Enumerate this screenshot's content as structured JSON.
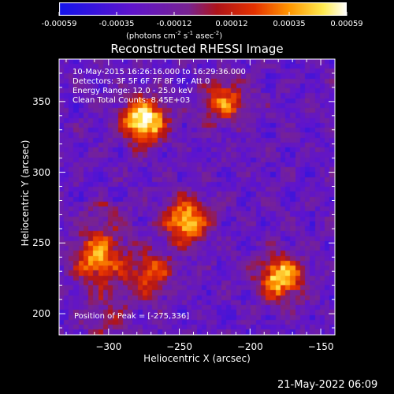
{
  "chart_data": {
    "type": "heatmap",
    "title": "Reconstructed RHESSI Image",
    "xlabel": "Heliocentric X (arcsec)",
    "ylabel": "Heliocentric Y (arcsec)",
    "xlim": [
      -335,
      -140
    ],
    "ylim": [
      185,
      380
    ],
    "x_ticks": [
      -300,
      -250,
      -200,
      -150
    ],
    "y_ticks": [
      200,
      250,
      300,
      350
    ],
    "colorbar": {
      "min": -0.00059,
      "max": 0.00059,
      "ticks": [
        "-0.00059",
        "-0.00035",
        "-0.00012",
        "0.00012",
        "0.00035",
        "0.00059"
      ],
      "unit_main": "(photons cm",
      "unit_sup1": "-2",
      "unit_mid": " s",
      "unit_sup2": "-1",
      "unit_end": " asec",
      "unit_sup3": "-2",
      "unit_close": ")"
    },
    "info_lines": [
      "10-May-2015 16:26:16.000 to 16:29:36.000",
      "Detectors: 3F 5F 6F 7F 8F 9F, Att 0",
      "Energy Range: 12.0 - 25.0 keV",
      "Clean     Total Counts: 8.45E+03"
    ],
    "peak_label": "Position of Peak = [-275,336]",
    "peak": [
      -275,
      336
    ],
    "sources": [
      {
        "x": -275,
        "y": 336,
        "flux": 0.00059
      },
      {
        "x": -245,
        "y": 265,
        "flux": 0.00042
      },
      {
        "x": -178,
        "y": 225,
        "flux": 0.00045
      },
      {
        "x": -218,
        "y": 349,
        "flux": 0.00022
      },
      {
        "x": -310,
        "y": 240,
        "flux": 0.0002
      },
      {
        "x": -270,
        "y": 228,
        "flux": 0.00018
      }
    ],
    "timestamp": "21-May-2022 06:09"
  }
}
